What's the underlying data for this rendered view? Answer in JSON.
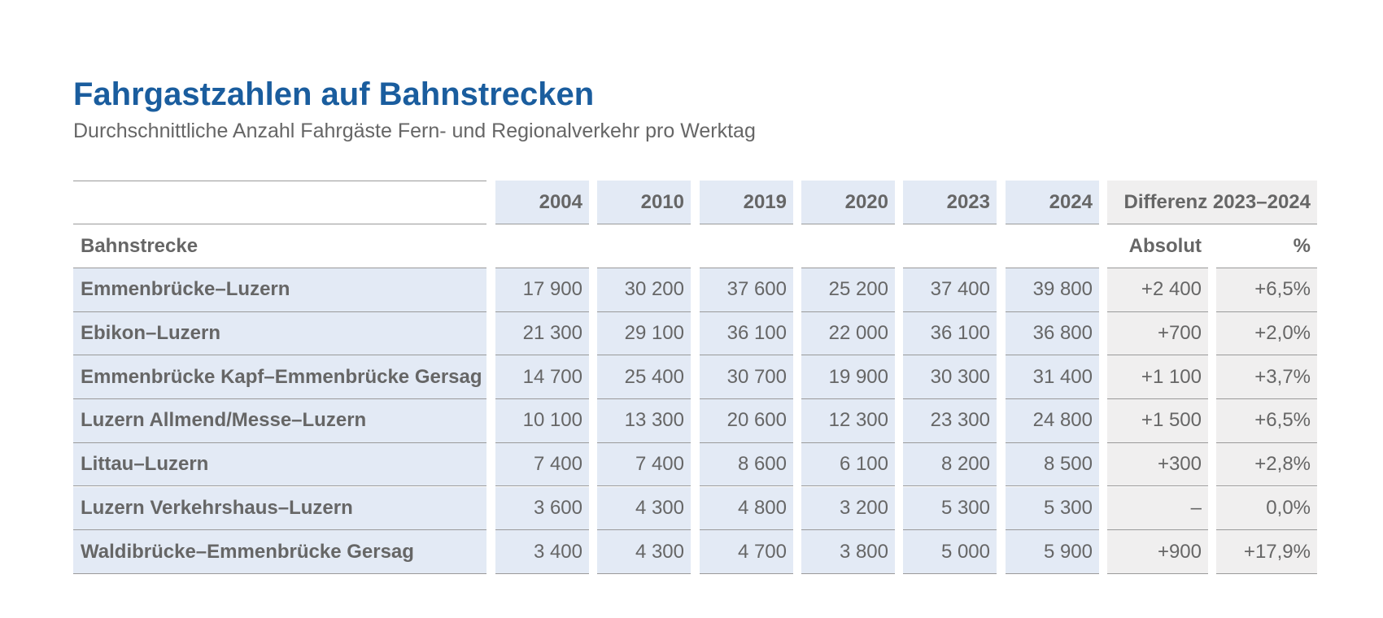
{
  "chart_data": {
    "type": "table",
    "title": "Fahrgastzahlen auf Bahnstrecken",
    "subtitle": "Durchschnittliche Anzahl Fahrgäste Fern- und Regionalverkehr pro Werktag",
    "row_header_label": "Bahnstrecke",
    "years": [
      "2004",
      "2010",
      "2019",
      "2020",
      "2023",
      "2024"
    ],
    "diff_header": "Differenz 2023–2024",
    "diff_subheaders": [
      "Absolut",
      "%"
    ],
    "rows": [
      {
        "name": "Emmenbrücke–Luzern",
        "values": [
          "17 900",
          "30 200",
          "37 600",
          "25 200",
          "37 400",
          "39 800"
        ],
        "abs": "+2 400",
        "pct": "+6,5%"
      },
      {
        "name": "Ebikon–Luzern",
        "values": [
          "21 300",
          "29 100",
          "36 100",
          "22 000",
          "36 100",
          "36 800"
        ],
        "abs": "+700",
        "pct": "+2,0%"
      },
      {
        "name": "Emmenbrücke Kapf–Emmenbrücke Gersag",
        "values": [
          "14 700",
          "25 400",
          "30 700",
          "19 900",
          "30 300",
          "31 400"
        ],
        "abs": "+1 100",
        "pct": "+3,7%"
      },
      {
        "name": "Luzern Allmend/Messe–Luzern",
        "values": [
          "10 100",
          "13 300",
          "20 600",
          "12 300",
          "23 300",
          "24 800"
        ],
        "abs": "+1 500",
        "pct": "+6,5%"
      },
      {
        "name": "Littau–Luzern",
        "values": [
          "7 400",
          "7 400",
          "8 600",
          "6 100",
          "8 200",
          "8 500"
        ],
        "abs": "+300",
        "pct": "+2,8%"
      },
      {
        "name": "Luzern Verkehrshaus–Luzern",
        "values": [
          "3 600",
          "4 300",
          "4 800",
          "3 200",
          "5 300",
          "5 300"
        ],
        "abs": "–",
        "pct": "0,0%"
      },
      {
        "name": "Waldibrücke–Emmenbrücke Gersag",
        "values": [
          "3 400",
          "4 300",
          "4 700",
          "3 800",
          "5 000",
          "5 900"
        ],
        "abs": "+900",
        "pct": "+17,9%"
      }
    ],
    "colors": {
      "title": "#1a5d9e",
      "text": "#666666",
      "cell_blue": "#e3eaf5",
      "cell_gray": "#f0efef",
      "rule": "#9a9a9a"
    }
  }
}
